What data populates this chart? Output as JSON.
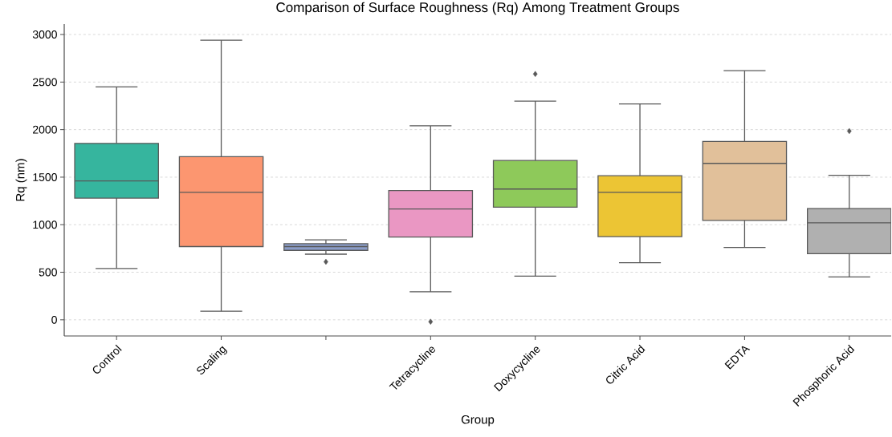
{
  "chart_data": {
    "type": "box",
    "title": "Comparison of Surface Roughness (Rq) Among Treatment Groups",
    "xlabel": "Group",
    "ylabel": "Rq (nm)",
    "categories": [
      "Control",
      "Scaling",
      null,
      "Tetracycline",
      "Doxycycline",
      "Citric Acid",
      "EDTA",
      "Phosphoric Acid"
    ],
    "colors": [
      "#36b59e",
      "#fc9670",
      "#8b9dc8",
      "#ea97c3",
      "#8ec95a",
      "#ecc534",
      "#e1c09a",
      "#b0b0b0"
    ],
    "boxes": [
      {
        "low": 540,
        "q1": 1280,
        "median": 1460,
        "q3": 1855,
        "high": 2450
      },
      {
        "low": 90,
        "q1": 770,
        "median": 1340,
        "q3": 1715,
        "high": 2940
      },
      {
        "low": 690,
        "q1": 730,
        "median": 770,
        "q3": 800,
        "high": 840,
        "outliers": [
          610
        ]
      },
      {
        "low": 295,
        "q1": 870,
        "median": 1165,
        "q3": 1360,
        "high": 2040,
        "outliers": [
          -20
        ]
      },
      {
        "low": 460,
        "q1": 1185,
        "median": 1375,
        "q3": 1675,
        "high": 2300,
        "outliers": [
          2585
        ]
      },
      {
        "low": 600,
        "q1": 875,
        "median": 1340,
        "q3": 1515,
        "high": 2270
      },
      {
        "low": 760,
        "q1": 1045,
        "median": 1645,
        "q3": 1875,
        "high": 2620
      },
      {
        "low": 450,
        "q1": 695,
        "median": 1020,
        "q3": 1170,
        "high": 1520,
        "outliers": [
          1985
        ]
      }
    ],
    "ylim": [
      -170,
      3110
    ],
    "yticks": [
      0,
      500,
      1000,
      1500,
      2000,
      2500,
      3000
    ],
    "grid": "y",
    "marker": "diamond"
  }
}
